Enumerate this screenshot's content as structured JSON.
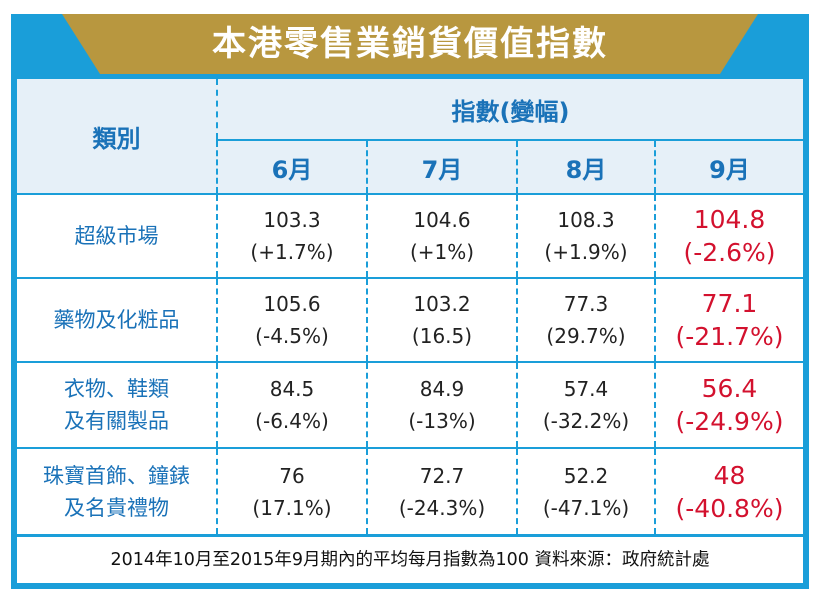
{
  "title": "本港零售業銷貨價值指數",
  "colors": {
    "frame": "#1a9ed9",
    "banner": "#b8973f",
    "highlight": "#d3112e",
    "header_text": "#1a72b8"
  },
  "chart_data": {
    "type": "table",
    "header": {
      "category": "類別",
      "index": "指數(變幅)"
    },
    "columns": [
      "6月",
      "7月",
      "8月",
      "9月"
    ],
    "rows": [
      {
        "category_lines": [
          "超級市場"
        ],
        "cells": [
          {
            "value": "103.3",
            "change": "(+1.7%)"
          },
          {
            "value": "104.6",
            "change": "(+1%)"
          },
          {
            "value": "108.3",
            "change": "(+1.9%)"
          },
          {
            "value": "104.8",
            "change": "(-2.6%)"
          }
        ]
      },
      {
        "category_lines": [
          "藥物及化粧品"
        ],
        "cells": [
          {
            "value": "105.6",
            "change": "(-4.5%)"
          },
          {
            "value": "103.2",
            "change": "(16.5)"
          },
          {
            "value": "77.3",
            "change": "(29.7%)"
          },
          {
            "value": "77.1",
            "change": "(-21.7%)"
          }
        ]
      },
      {
        "category_lines": [
          "衣物、鞋類",
          "及有關製品"
        ],
        "cells": [
          {
            "value": "84.5",
            "change": "(-6.4%)"
          },
          {
            "value": "84.9",
            "change": "(-13%)"
          },
          {
            "value": "57.4",
            "change": "(-32.2%)"
          },
          {
            "value": "56.4",
            "change": "(-24.9%)"
          }
        ]
      },
      {
        "category_lines": [
          "珠寶首飾、鐘錶",
          "及名貴禮物"
        ],
        "cells": [
          {
            "value": "76",
            "change": "(17.1%)"
          },
          {
            "value": "72.7",
            "change": "(-24.3%)"
          },
          {
            "value": "52.2",
            "change": "(-47.1%)"
          },
          {
            "value": "48",
            "change": "(-40.8%)"
          }
        ]
      }
    ],
    "footnote": "2014年10月至2015年9月期內的平均每月指數為100  資料來源：政府統計處"
  }
}
